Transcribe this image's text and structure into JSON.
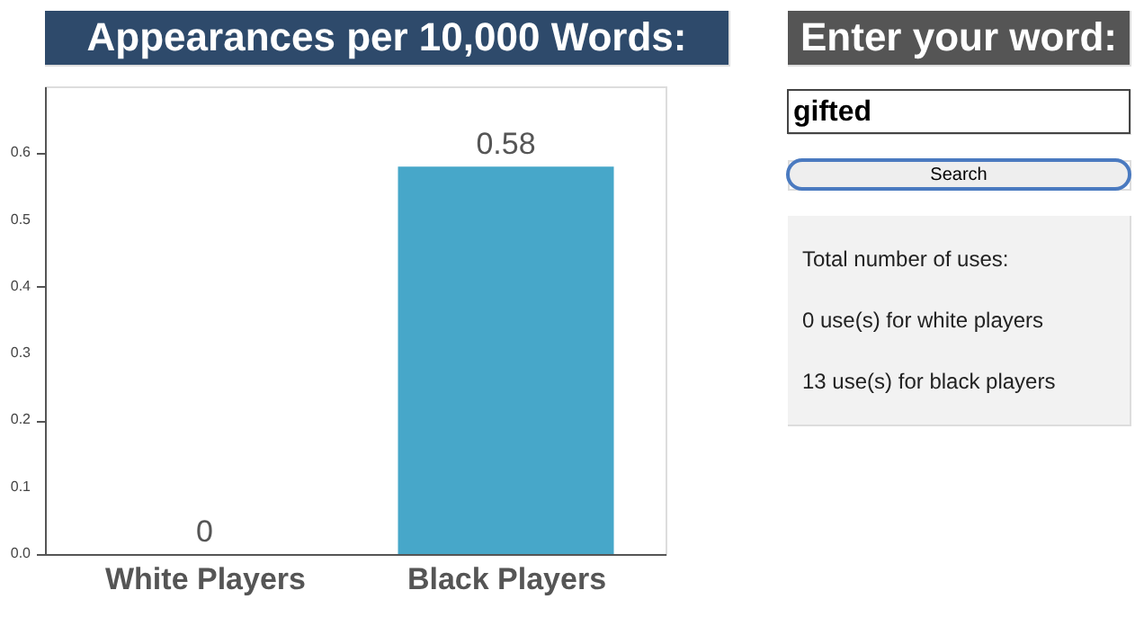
{
  "chart_data": [
    {
      "type": "bar",
      "title": "Appearances per 10,000 Words:",
      "categories": [
        "White Players",
        "Black Players"
      ],
      "values": [
        0,
        0.58
      ],
      "color": "#47a7c9",
      "data_labels": true,
      "ylim": [
        0,
        0.7
      ],
      "yticks": [
        {
          "value": 0,
          "label": "0.0"
        },
        {
          "value": 0.1,
          "label": "0.1"
        },
        {
          "value": 0.2,
          "label": "0.2"
        },
        {
          "value": 0.3,
          "label": "0.3"
        },
        {
          "value": 0.4,
          "label": "0.4"
        },
        {
          "value": 0.5,
          "label": "0.5"
        },
        {
          "value": 0.6,
          "label": "0.6"
        },
        {
          "value": 0.7,
          "label": null
        }
      ],
      "grid": false
    },
    {
      "type": "other",
      "title": "Enter your word:",
      "annotations": [
        "gifted",
        "Search",
        "Total number of uses:",
        "0 use(s) for white players",
        "13 use(s) for black players"
      ]
    }
  ]
}
